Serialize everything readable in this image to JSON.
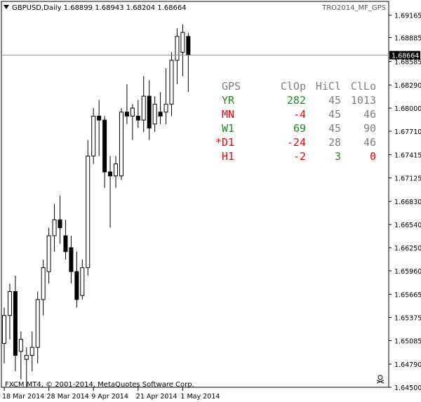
{
  "header": {
    "symbol_line": "GBPUSD,Daily  1.68899 1.68943 1.68204 1.68664",
    "indicator_name": "TRO2014_MF_GPS",
    "collapse_icon": "triangle-down-icon"
  },
  "footer": {
    "copyright": "FXCM MT4, © 2001-2014, MetaQuotes Software Corp.",
    "corner_icon": "skull-icon"
  },
  "colors": {
    "bull_fill": "#ffffff",
    "bear_fill": "#000000",
    "candle_line": "#000000",
    "price_line": "#7a9a8a",
    "gps_header": "#808080",
    "gps_green": "#228b22",
    "gps_red": "#ff0000",
    "gps_gray": "#808080"
  },
  "gps_table": {
    "headers": [
      "GPS",
      "ClOp",
      "HiCl",
      "ClLo"
    ],
    "rows": [
      {
        "label": "YR",
        "label_color": "#228b22",
        "clop": "282",
        "clop_color": "#228b22",
        "hicl": "45",
        "hicl_color": "#808080",
        "cllo": "1013",
        "cllo_color": "#808080"
      },
      {
        "label": "MN",
        "label_color": "#ff0000",
        "clop": "-4",
        "clop_color": "#ff0000",
        "hicl": "45",
        "hicl_color": "#808080",
        "cllo": "46",
        "cllo_color": "#808080"
      },
      {
        "label": "W1",
        "label_color": "#228b22",
        "clop": "69",
        "clop_color": "#228b22",
        "hicl": "45",
        "hicl_color": "#808080",
        "cllo": "90",
        "cllo_color": "#808080"
      },
      {
        "label": "*D1",
        "label_color": "#ff0000",
        "clop": "-24",
        "clop_color": "#ff0000",
        "hicl": "28",
        "hicl_color": "#808080",
        "cllo": "46",
        "cllo_color": "#808080"
      },
      {
        "label": "H1",
        "label_color": "#ff0000",
        "clop": "-2",
        "clop_color": "#ff0000",
        "hicl": "3",
        "hicl_color": "#228b22",
        "cllo": "0",
        "cllo_color": "#ff0000"
      }
    ]
  },
  "chart_data": {
    "type": "candlestick",
    "title": "GBPUSD,Daily",
    "current_price": 1.68664,
    "ylim": [
      1.645,
      1.6925
    ],
    "y_ticks": [
      1.69165,
      1.68885,
      1.68585,
      1.6829,
      1.68,
      1.6771,
      1.67415,
      1.67125,
      1.6683,
      1.6654,
      1.6625,
      1.6596,
      1.65665,
      1.65375,
      1.65085,
      1.6479,
      1.645
    ],
    "y_tick_labels": [
      "1.69165",
      "1.68885",
      "1.68585",
      "1.68290",
      "1.68000",
      "1.67710",
      "1.67415",
      "1.67125",
      "1.66830",
      "1.66540",
      "1.66250",
      "1.65960",
      "1.65665",
      "1.65375",
      "1.65085",
      "1.64790",
      "1.64500"
    ],
    "current_price_label": "1.68664",
    "x_tick_labels": [
      {
        "label": "18 Mar 2014",
        "bar": 0
      },
      {
        "label": "28 Mar 2014",
        "bar": 8
      },
      {
        "label": "9 Apr 2014",
        "bar": 16
      },
      {
        "label": "21 Apr 2014",
        "bar": 24
      },
      {
        "label": "1 May 2014",
        "bar": 32
      }
    ],
    "candles": [
      {
        "o": 1.6505,
        "h": 1.655,
        "l": 1.648,
        "c": 1.654
      },
      {
        "o": 1.654,
        "h": 1.658,
        "l": 1.651,
        "c": 1.657
      },
      {
        "o": 1.657,
        "h": 1.659,
        "l": 1.647,
        "c": 1.649
      },
      {
        "o": 1.6495,
        "h": 1.652,
        "l": 1.646,
        "c": 1.651
      },
      {
        "o": 1.6485,
        "h": 1.65,
        "l": 1.645,
        "c": 1.649
      },
      {
        "o": 1.649,
        "h": 1.652,
        "l": 1.647,
        "c": 1.65
      },
      {
        "o": 1.65,
        "h": 1.657,
        "l": 1.648,
        "c": 1.656
      },
      {
        "o": 1.656,
        "h": 1.661,
        "l": 1.654,
        "c": 1.66
      },
      {
        "o": 1.6595,
        "h": 1.665,
        "l": 1.658,
        "c": 1.664
      },
      {
        "o": 1.664,
        "h": 1.668,
        "l": 1.662,
        "c": 1.666
      },
      {
        "o": 1.666,
        "h": 1.669,
        "l": 1.663,
        "c": 1.665
      },
      {
        "o": 1.664,
        "h": 1.666,
        "l": 1.661,
        "c": 1.662
      },
      {
        "o": 1.6625,
        "h": 1.664,
        "l": 1.658,
        "c": 1.6595
      },
      {
        "o": 1.6595,
        "h": 1.662,
        "l": 1.655,
        "c": 1.656
      },
      {
        "o": 1.6565,
        "h": 1.661,
        "l": 1.656,
        "c": 1.66
      },
      {
        "o": 1.66,
        "h": 1.676,
        "l": 1.659,
        "c": 1.674
      },
      {
        "o": 1.674,
        "h": 1.68,
        "l": 1.673,
        "c": 1.679
      },
      {
        "o": 1.679,
        "h": 1.681,
        "l": 1.674,
        "c": 1.6785
      },
      {
        "o": 1.6785,
        "h": 1.679,
        "l": 1.67,
        "c": 1.672
      },
      {
        "o": 1.672,
        "h": 1.674,
        "l": 1.665,
        "c": 1.6715
      },
      {
        "o": 1.6715,
        "h": 1.674,
        "l": 1.67,
        "c": 1.673
      },
      {
        "o": 1.6715,
        "h": 1.68,
        "l": 1.671,
        "c": 1.6795
      },
      {
        "o": 1.6795,
        "h": 1.683,
        "l": 1.678,
        "c": 1.679
      },
      {
        "o": 1.679,
        "h": 1.6805,
        "l": 1.676,
        "c": 1.68
      },
      {
        "o": 1.679,
        "h": 1.681,
        "l": 1.6775,
        "c": 1.6785
      },
      {
        "o": 1.6785,
        "h": 1.684,
        "l": 1.677,
        "c": 1.6815
      },
      {
        "o": 1.6815,
        "h": 1.6835,
        "l": 1.676,
        "c": 1.6775
      },
      {
        "o": 1.678,
        "h": 1.6815,
        "l": 1.677,
        "c": 1.6805
      },
      {
        "o": 1.6795,
        "h": 1.682,
        "l": 1.678,
        "c": 1.679
      },
      {
        "o": 1.6795,
        "h": 1.685,
        "l": 1.678,
        "c": 1.6805
      },
      {
        "o": 1.6805,
        "h": 1.687,
        "l": 1.679,
        "c": 1.686
      },
      {
        "o": 1.686,
        "h": 1.69,
        "l": 1.683,
        "c": 1.689
      },
      {
        "o": 1.687,
        "h": 1.6905,
        "l": 1.684,
        "c": 1.6895
      },
      {
        "o": 1.68899,
        "h": 1.68943,
        "l": 1.68204,
        "c": 1.68664
      }
    ]
  }
}
